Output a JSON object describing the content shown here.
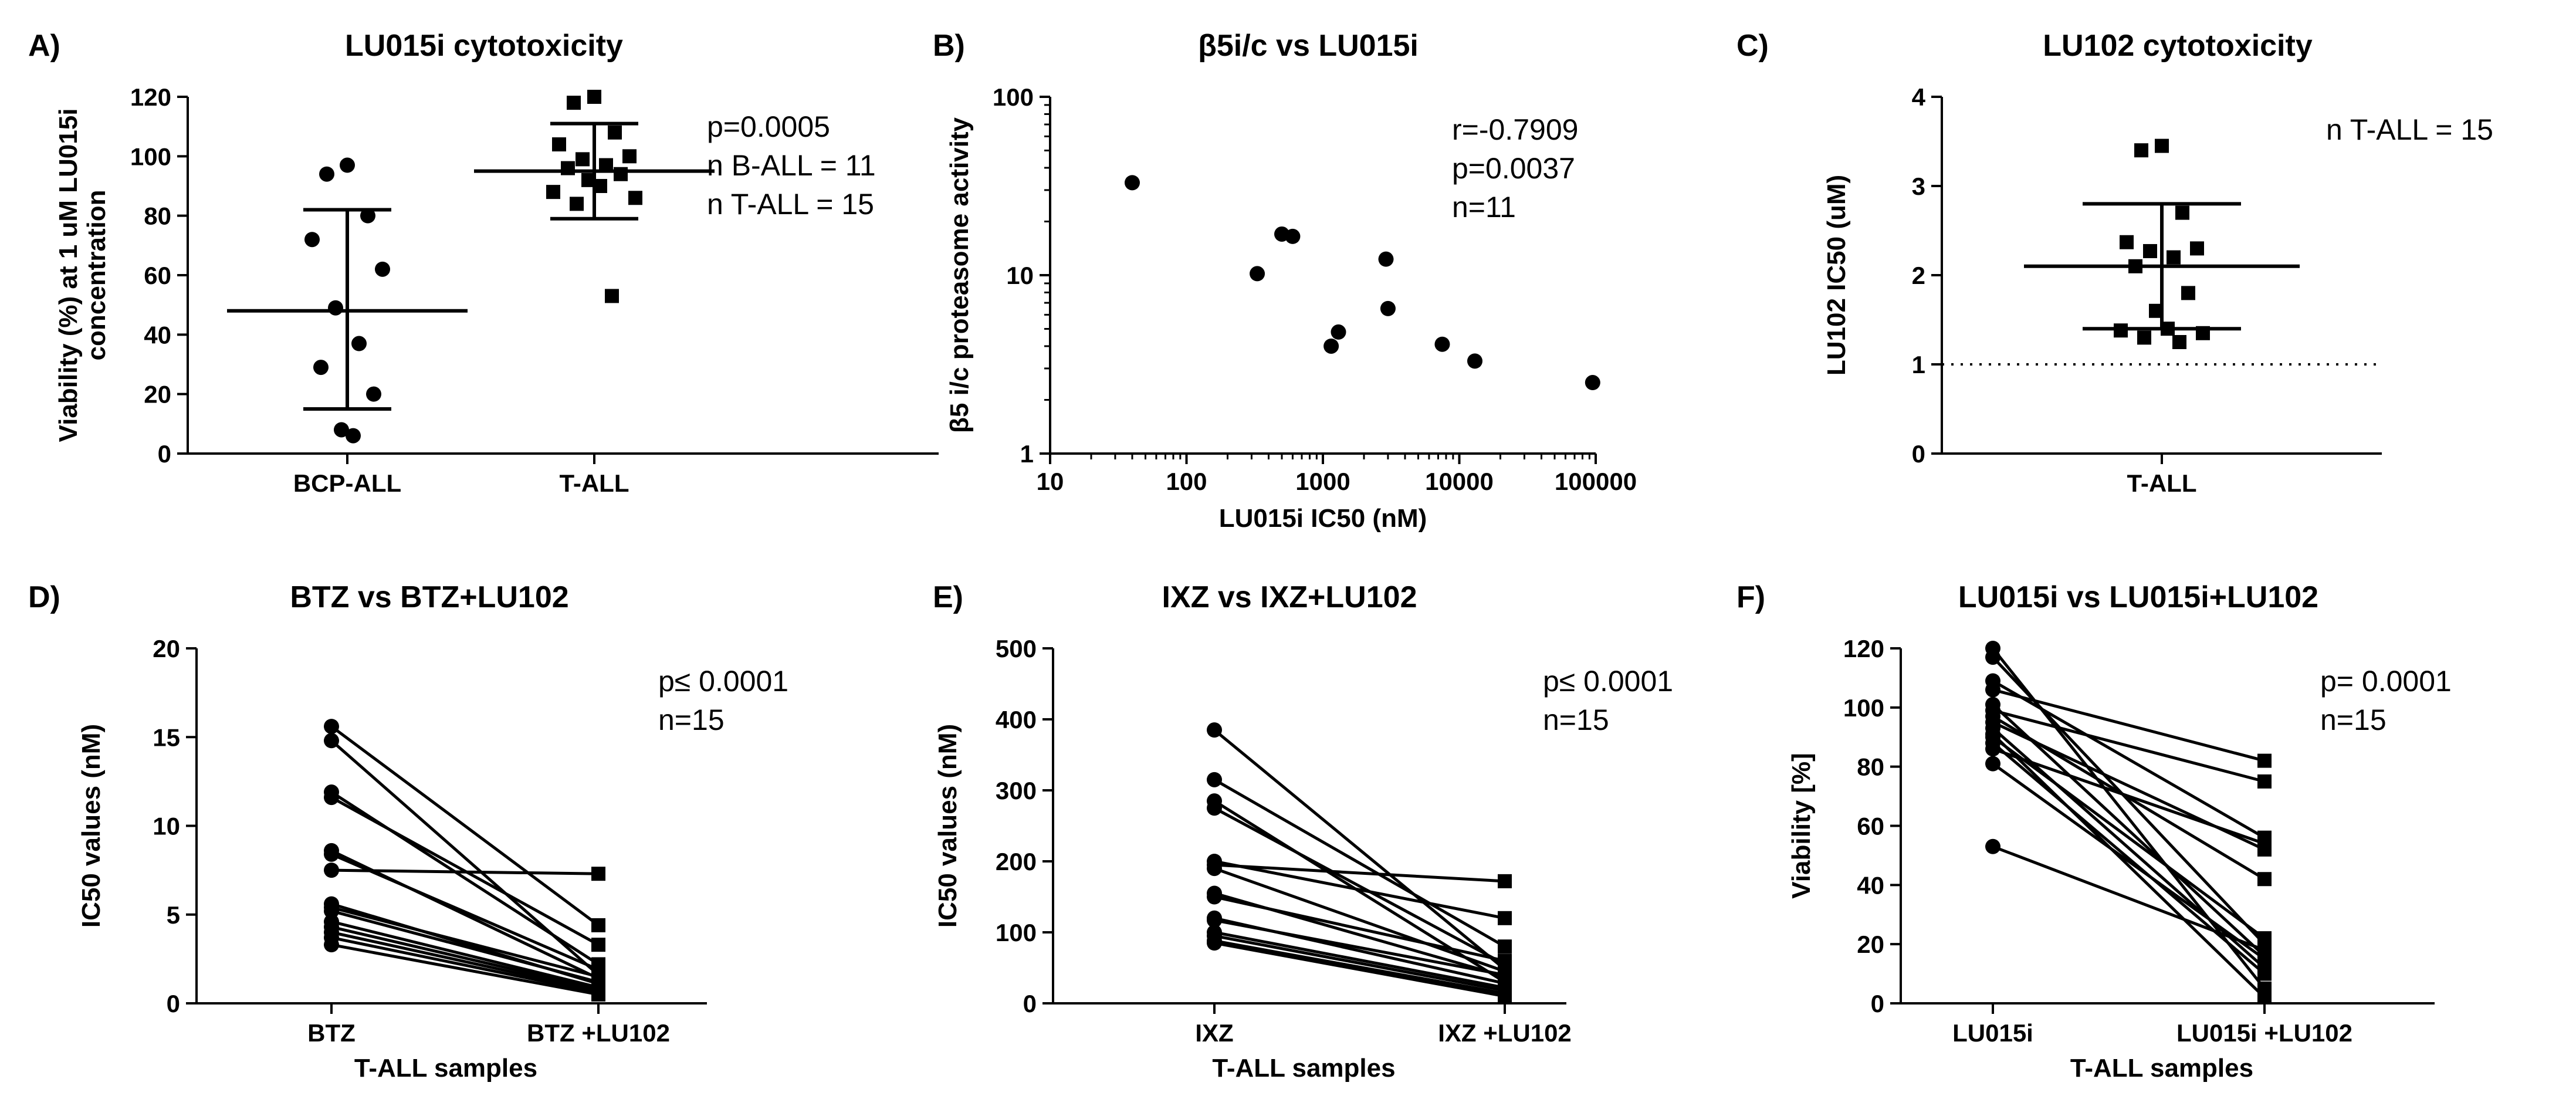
{
  "panels": [
    {
      "id": "A",
      "letter": "A)",
      "title": "LU015i cytotoxicity",
      "scale": "linear",
      "xlabel": "",
      "ylabel_lines": [
        "Viability (%) at 1 uM LU015i",
        "concentration"
      ],
      "ylim": [
        0,
        120
      ],
      "yticks": [
        "0",
        "20",
        "40",
        "60",
        "80",
        "100",
        "120"
      ],
      "groups": [
        {
          "label": "BCP-ALL",
          "marker": "circle",
          "mean": 48,
          "sd_low": 15,
          "sd_high": 82,
          "values": [
            97,
            94,
            80,
            72,
            62,
            49,
            37,
            29,
            20,
            8,
            6
          ]
        },
        {
          "label": "T-ALL",
          "marker": "square",
          "mean": 95,
          "sd_low": 79,
          "sd_high": 111,
          "values": [
            120,
            118,
            108,
            104,
            100,
            99,
            97,
            96,
            94,
            92,
            90,
            88,
            86,
            84,
            53
          ]
        }
      ],
      "annotations": [
        "p=0.0005",
        "n B-ALL = 11",
        "n T-ALL = 15"
      ]
    },
    {
      "id": "B",
      "letter": "B)",
      "title": "β5i/c vs LU015i",
      "scale": "loglog",
      "xlabel": "LU015i IC50 (nM)",
      "ylabel_lines": [
        "β5 i/c proteasome activity"
      ],
      "xlim": [
        10,
        100000
      ],
      "ylim": [
        1,
        100
      ],
      "xticks": [
        "10",
        "100",
        "1000",
        "10000",
        "100000"
      ],
      "yticks": [
        "1",
        "10",
        "100"
      ],
      "points": [
        {
          "x": 40,
          "y": 33
        },
        {
          "x": 330,
          "y": 10.2
        },
        {
          "x": 500,
          "y": 17
        },
        {
          "x": 600,
          "y": 16.5
        },
        {
          "x": 1150,
          "y": 4
        },
        {
          "x": 1300,
          "y": 4.8
        },
        {
          "x": 2900,
          "y": 12.3
        },
        {
          "x": 3000,
          "y": 6.5
        },
        {
          "x": 7500,
          "y": 4.1
        },
        {
          "x": 13000,
          "y": 3.3
        },
        {
          "x": 95000,
          "y": 2.5
        }
      ],
      "annotations": [
        "r=-0.7909",
        "p=0.0037",
        "n=11"
      ]
    },
    {
      "id": "C",
      "letter": "C)",
      "title": "LU102 cytotoxicity",
      "scale": "linear",
      "xlabel": "",
      "ylabel_lines": [
        "LU102 IC50 (uM)"
      ],
      "ylim": [
        0,
        4
      ],
      "yticks": [
        "0",
        "1",
        "2",
        "3",
        "4"
      ],
      "reference_line": 1,
      "groups": [
        {
          "label": "T-ALL",
          "marker": "square",
          "mean": 2.1,
          "sd_low": 1.4,
          "sd_high": 2.8,
          "values": [
            3.45,
            3.4,
            2.7,
            2.37,
            2.3,
            2.27,
            2.2,
            2.1,
            1.8,
            1.6,
            1.4,
            1.38,
            1.35,
            1.3,
            1.25
          ]
        }
      ],
      "annotations": [
        "n T-ALL = 15"
      ]
    },
    {
      "id": "D",
      "letter": "D)",
      "title": "BTZ vs BTZ+LU102",
      "scale": "paired",
      "xlabel": "T-ALL samples",
      "ylabel_lines": [
        "IC50 values (nM)"
      ],
      "ylim": [
        0,
        20
      ],
      "yticks": [
        "0",
        "5",
        "10",
        "15",
        "20"
      ],
      "categories": [
        "BTZ",
        "BTZ +LU102"
      ],
      "pairs": [
        [
          15.6,
          4.4
        ],
        [
          14.8,
          1.6
        ],
        [
          11.9,
          2.2
        ],
        [
          11.6,
          3.3
        ],
        [
          8.6,
          1.4
        ],
        [
          8.4,
          1.9
        ],
        [
          7.5,
          7.3
        ],
        [
          5.6,
          1.1
        ],
        [
          5.4,
          1.5
        ],
        [
          5.2,
          1.2
        ],
        [
          4.6,
          0.9
        ],
        [
          4.3,
          0.8
        ],
        [
          4.0,
          0.7
        ],
        [
          3.7,
          0.6
        ],
        [
          3.3,
          0.5
        ]
      ],
      "annotations": [
        "p≤ 0.0001",
        "n=15"
      ]
    },
    {
      "id": "E",
      "letter": "E)",
      "title": "IXZ vs IXZ+LU102",
      "scale": "paired",
      "xlabel": "T-ALL samples",
      "ylabel_lines": [
        "IC50 values (nM)"
      ],
      "ylim": [
        0,
        500
      ],
      "yticks": [
        "0",
        "100",
        "200",
        "300",
        "400",
        "500"
      ],
      "categories": [
        "IXZ",
        "IXZ +LU102"
      ],
      "pairs": [
        [
          385,
          48
        ],
        [
          315,
          80
        ],
        [
          285,
          30
        ],
        [
          275,
          55
        ],
        [
          200,
          120
        ],
        [
          195,
          172
        ],
        [
          190,
          45
        ],
        [
          155,
          38
        ],
        [
          150,
          60
        ],
        [
          120,
          28
        ],
        [
          117,
          40
        ],
        [
          100,
          22
        ],
        [
          95,
          18
        ],
        [
          88,
          14
        ],
        [
          85,
          10
        ]
      ],
      "annotations": [
        "p≤ 0.0001",
        "n=15"
      ]
    },
    {
      "id": "F",
      "letter": "F)",
      "title": "LU015i vs LU015i+LU102",
      "scale": "paired",
      "xlabel": "T-ALL samples",
      "ylabel_lines": [
        "Viability [%]"
      ],
      "ylim": [
        0,
        120
      ],
      "yticks": [
        "0",
        "20",
        "40",
        "60",
        "80",
        "100",
        "120"
      ],
      "categories": [
        "LU015i",
        "LU015i +LU102"
      ],
      "pairs": [
        [
          120,
          5
        ],
        [
          117,
          20
        ],
        [
          109,
          56
        ],
        [
          106,
          82
        ],
        [
          101,
          16
        ],
        [
          99,
          75
        ],
        [
          97,
          42
        ],
        [
          95,
          52
        ],
        [
          93,
          12
        ],
        [
          91,
          2
        ],
        [
          90,
          22
        ],
        [
          88,
          10
        ],
        [
          86,
          54
        ],
        [
          81,
          15
        ],
        [
          53,
          18
        ]
      ],
      "annotations": [
        "p= 0.0001",
        "n=15"
      ]
    }
  ]
}
